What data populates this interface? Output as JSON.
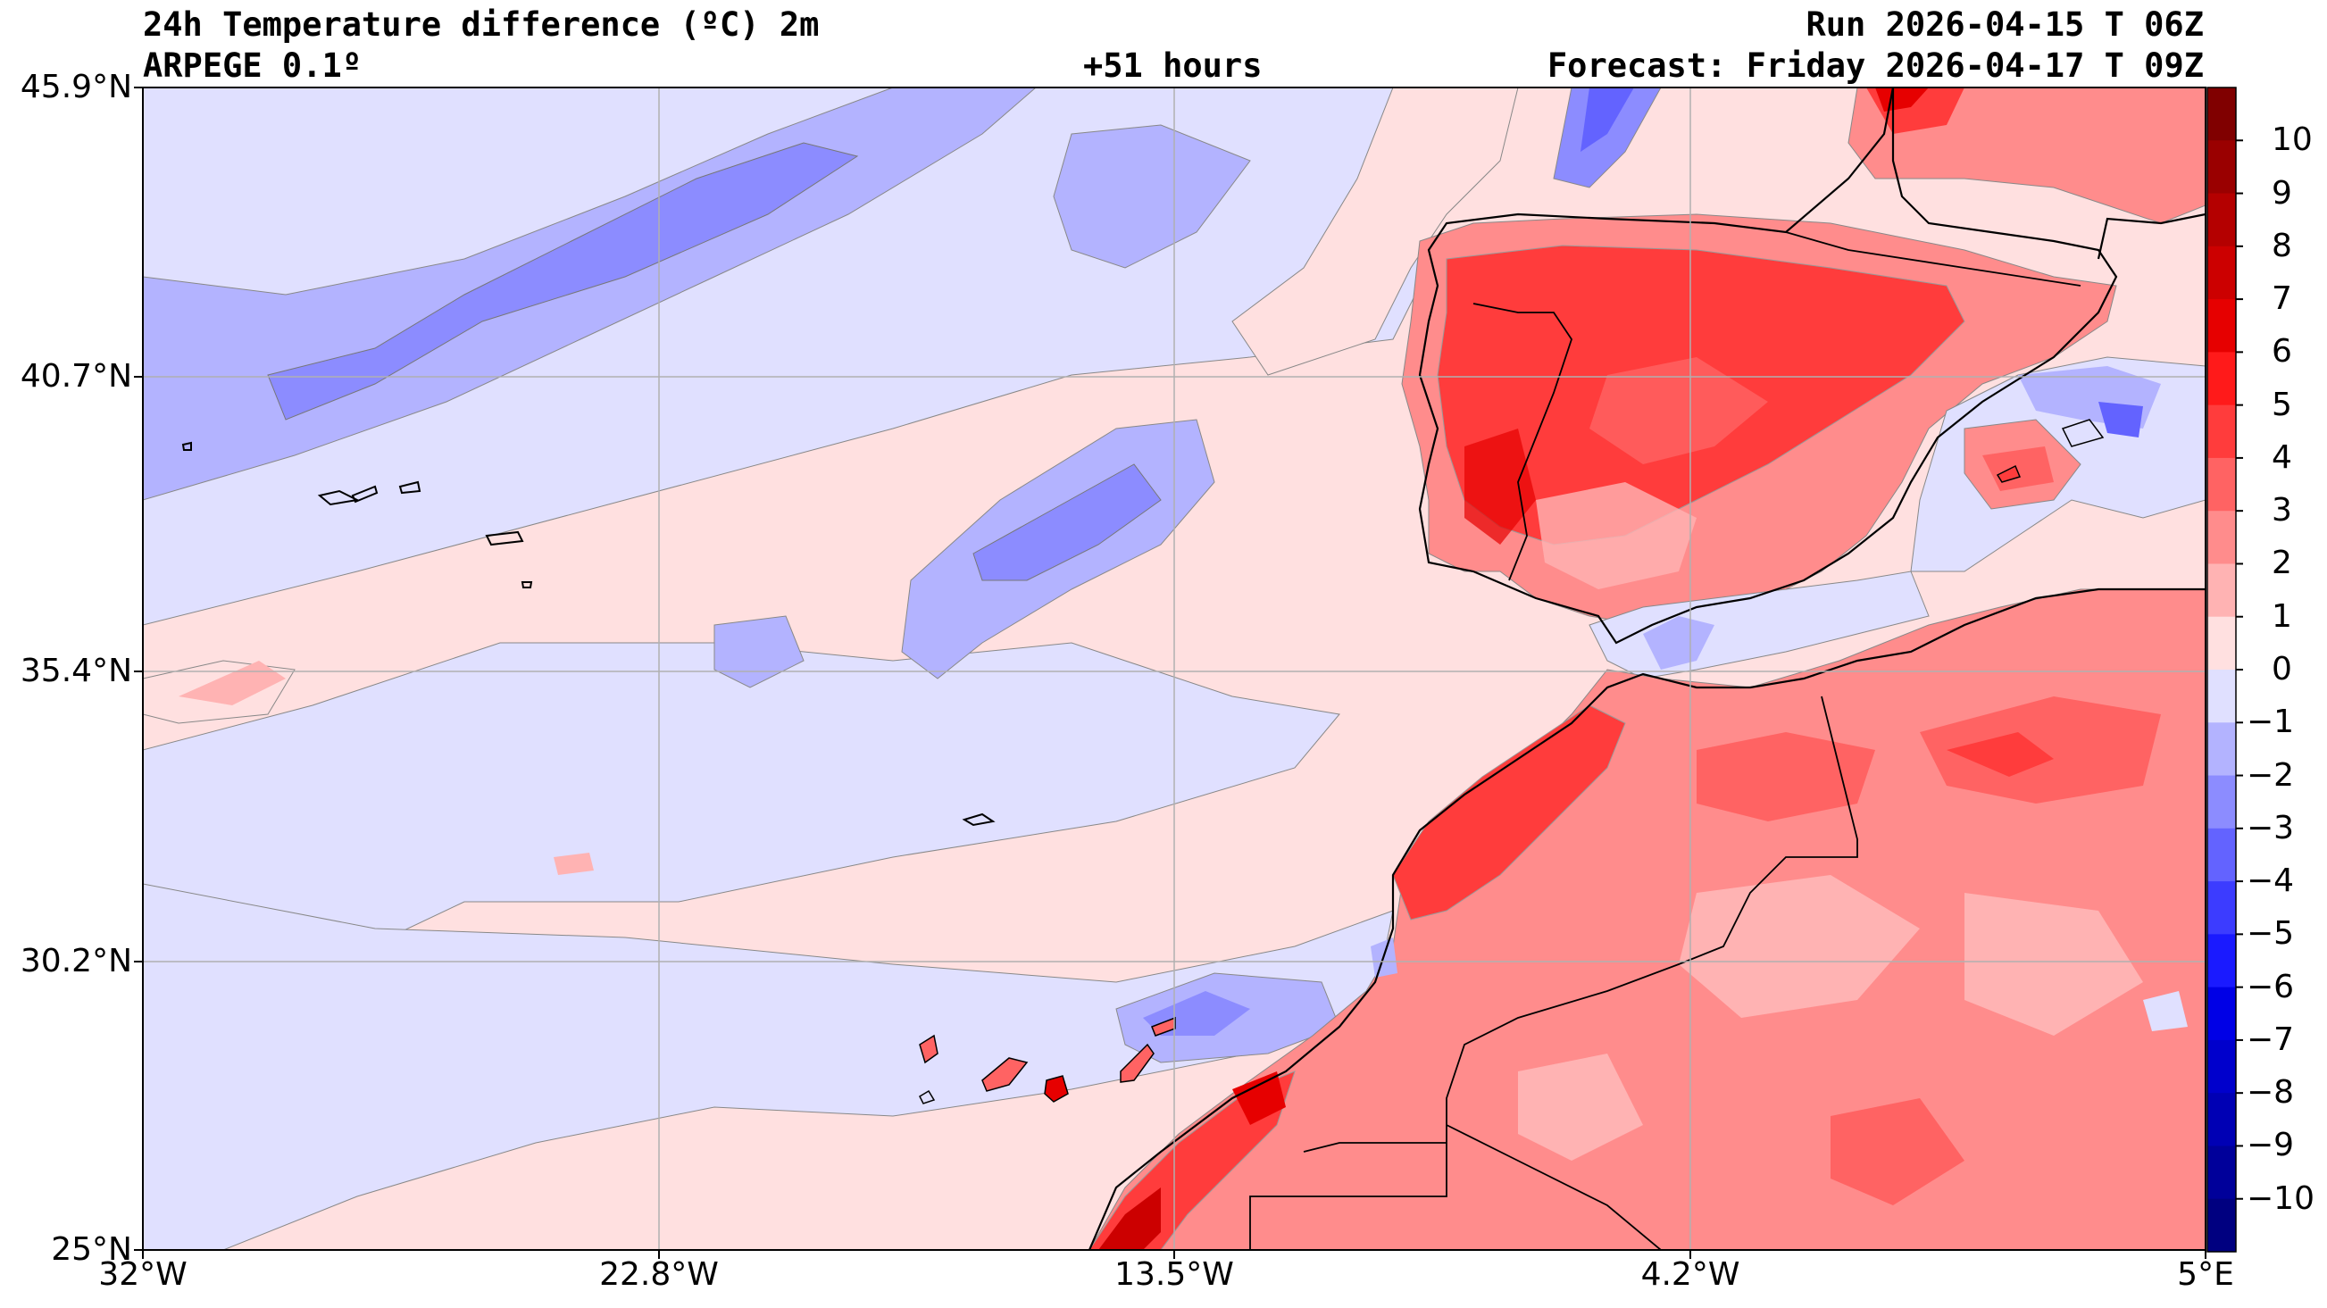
{
  "header": {
    "title_line1": "24h Temperature difference (ºC) 2m",
    "title_line2": "ARPEGE 0.1º",
    "lead_time": "+51 hours",
    "run": "Run 2026-04-15 T 06Z",
    "forecast": "Forecast: Friday 2026-04-17 T 09Z"
  },
  "axes": {
    "lat_ticks": [
      "45.9°N",
      "40.7°N",
      "35.4°N",
      "30.2°N",
      "25°N"
    ],
    "lon_ticks": [
      "32°W",
      "22.8°W",
      "13.5°W",
      "4.2°W",
      "5°E"
    ]
  },
  "colorbar": {
    "ticks": [
      "10",
      "9",
      "8",
      "7",
      "6",
      "5",
      "4",
      "3",
      "2",
      "1",
      "0",
      "−1",
      "−2",
      "−3",
      "−4",
      "−5",
      "−6",
      "−7",
      "−8",
      "−9",
      "−10"
    ],
    "levels": [
      11,
      10,
      9,
      8,
      7,
      6,
      5,
      4,
      3,
      2,
      1,
      0,
      -1,
      -2,
      -3,
      -4,
      -5,
      -6,
      -7,
      -8,
      -9,
      -10,
      -11
    ],
    "colors": [
      "#800000",
      "#9a0000",
      "#b40000",
      "#cc0000",
      "#e60000",
      "#ff1a1a",
      "#ff3c3c",
      "#ff6363",
      "#ff8c8c",
      "#ffb3b3",
      "#ffe0e0",
      "#e0e0ff",
      "#b3b3ff",
      "#8c8cff",
      "#6363ff",
      "#3c3cff",
      "#1a1aff",
      "#0000e6",
      "#0000cc",
      "#0000b4",
      "#00009a",
      "#000080"
    ]
  },
  "map": {
    "region": "Iberian Peninsula, Morocco and eastern Atlantic",
    "colors": {
      "ocean_negative": "#e0e0ff",
      "ocean_positive": "#ffe0e0",
      "land_warm": "#ff8c8c",
      "land_hot": "#ff3c3c",
      "cool_band": "#b3b3ff",
      "cold_core": "#6363ff",
      "coastline": "#000000",
      "gridline": "#b0b0b0"
    }
  }
}
